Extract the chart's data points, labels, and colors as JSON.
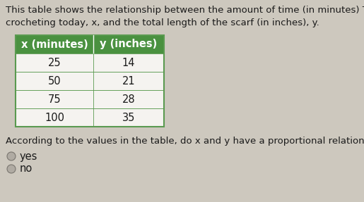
{
  "title_line1": "This table shows the relationship between the amount of time (in minutes) T",
  "title_line2": "crocheting today, x, and the total length of the scarf (in inches), y.",
  "col1_header": "x (minutes)",
  "col2_header": "y (inches)",
  "rows": [
    [
      25,
      14
    ],
    [
      50,
      21
    ],
    [
      75,
      28
    ],
    [
      100,
      35
    ]
  ],
  "question": "According to the values in the table, do x and y have a proportional relationshi",
  "options": [
    "yes",
    "no"
  ],
  "header_bg": "#4a9140",
  "header_text": "#ffffff",
  "table_border": "#5a9a50",
  "cell_bg": "#f5f3f0",
  "bg_color": "#cdc8be",
  "text_color": "#1a1a1a",
  "title_fontsize": 9.5,
  "table_fontsize": 10.5,
  "question_fontsize": 9.5,
  "option_fontsize": 10.5,
  "radio_color": "#b0aba3"
}
